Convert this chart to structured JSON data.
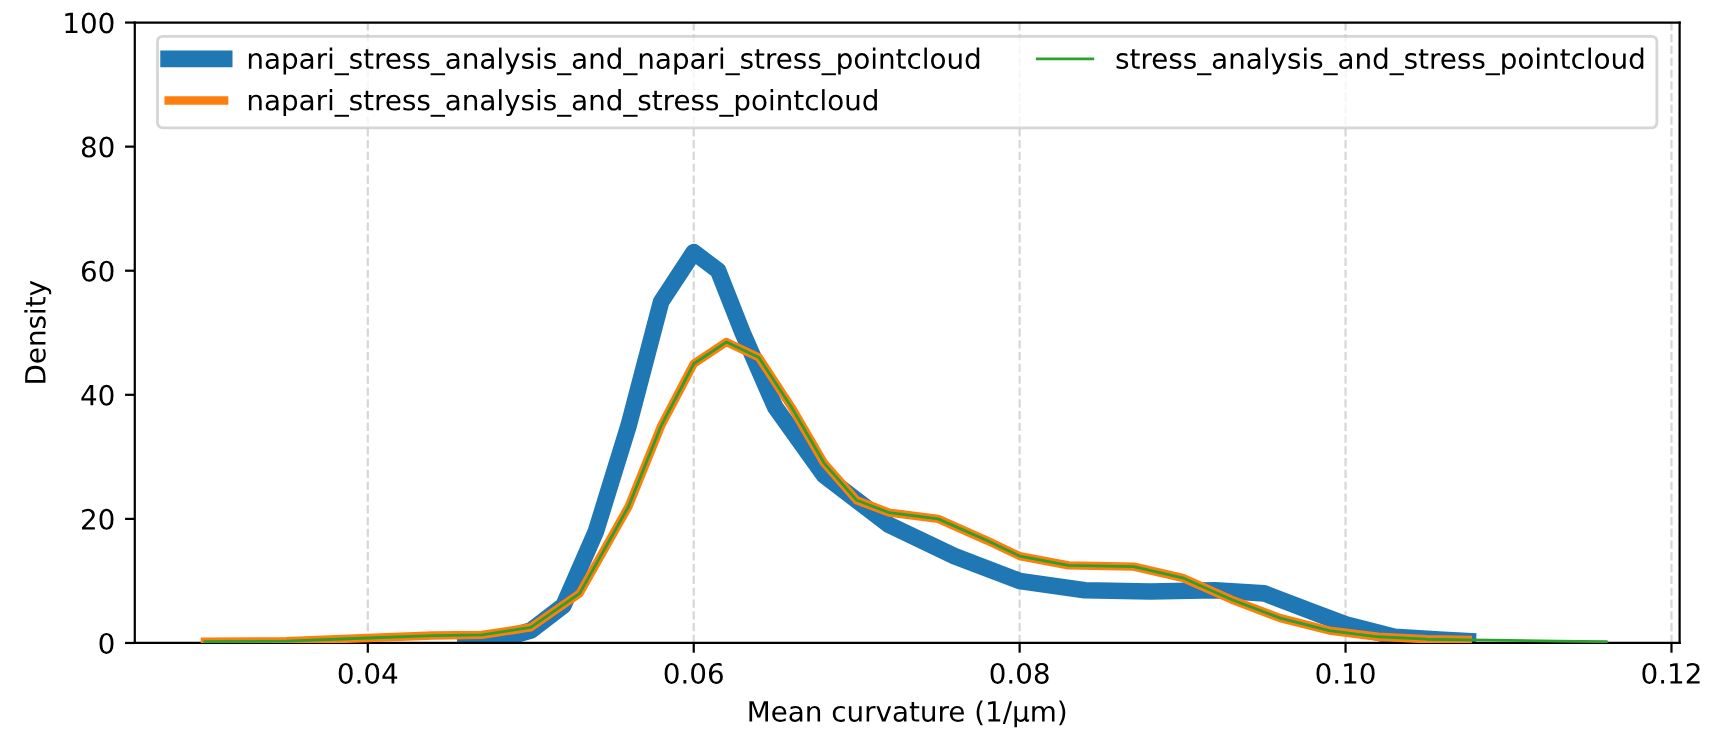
{
  "chart_data": {
    "type": "line",
    "xlabel": "Mean curvature (1/μm)",
    "ylabel": "Density",
    "xlim": [
      0.0257,
      0.1205
    ],
    "ylim": [
      0,
      100
    ],
    "xticks": [
      0.04,
      0.06,
      0.08,
      {
        "value": 0.1,
        "label": "0.10"
      },
      0.12
    ],
    "yticks": [
      0,
      20,
      40,
      60,
      80,
      100
    ],
    "grid": "x",
    "legend": "top",
    "line_style": "solid",
    "marker": "none",
    "series": [
      {
        "name": "napari_stress_analysis_and_napari_stress_pointcloud",
        "color": "#1f77b4",
        "x": [
          0.046,
          0.048,
          0.05,
          0.052,
          0.054,
          0.056,
          0.058,
          0.06,
          0.0615,
          0.063,
          0.065,
          0.068,
          0.072,
          0.076,
          0.08,
          0.084,
          0.088,
          0.092,
          0.095,
          0.098,
          0.1,
          0.103,
          0.106,
          0.1075
        ],
        "values": [
          0,
          0.5,
          2,
          6,
          18,
          35,
          55,
          63,
          60,
          50,
          38,
          27,
          19,
          14,
          10,
          8.5,
          8.3,
          8.5,
          8,
          5,
          3,
          1,
          0.5,
          0.3
        ]
      },
      {
        "name": "napari_stress_analysis_and_stress_pointcloud",
        "color": "#ff7f0e",
        "x": [
          0.03,
          0.035,
          0.04,
          0.044,
          0.047,
          0.05,
          0.053,
          0.056,
          0.058,
          0.06,
          0.062,
          0.064,
          0.066,
          0.068,
          0.07,
          0.072,
          0.075,
          0.078,
          0.08,
          0.083,
          0.087,
          0.09,
          0.093,
          0.096,
          0.099,
          0.102,
          0.105,
          0.1075
        ],
        "values": [
          0.2,
          0.3,
          0.8,
          1.2,
          1.3,
          2.5,
          8,
          22,
          35,
          45,
          48.5,
          46,
          38,
          29,
          23,
          21,
          20,
          16.5,
          14,
          12.5,
          12.3,
          10.5,
          7,
          4,
          2,
          1,
          0.6,
          0.5
        ]
      },
      {
        "name": "stress_analysis_and_stress_pointcloud",
        "color": "#2ca02c",
        "x": [
          0.03,
          0.035,
          0.04,
          0.044,
          0.047,
          0.05,
          0.053,
          0.056,
          0.058,
          0.06,
          0.062,
          0.064,
          0.066,
          0.068,
          0.07,
          0.072,
          0.075,
          0.078,
          0.08,
          0.083,
          0.087,
          0.09,
          0.093,
          0.096,
          0.099,
          0.102,
          0.105,
          0.1075,
          0.11,
          0.113,
          0.116
        ],
        "values": [
          0.2,
          0.3,
          0.8,
          1.2,
          1.3,
          2.5,
          8,
          22,
          35,
          45,
          48.5,
          46,
          38,
          29,
          23,
          21,
          20,
          16.5,
          14,
          12.5,
          12.3,
          10.5,
          7,
          4,
          2,
          1,
          0.6,
          0.5,
          0.4,
          0.3,
          0.2
        ]
      }
    ]
  }
}
